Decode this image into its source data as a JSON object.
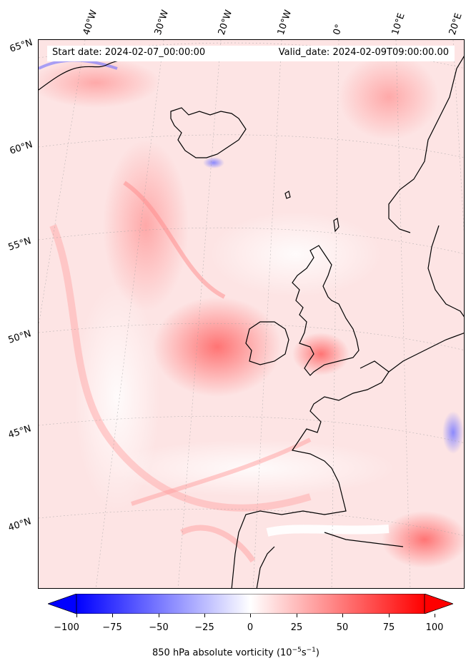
{
  "header": {
    "start_date": "Start date: 2024-02-07_00:00:00",
    "valid_date": "Valid_date: 2024-02-09T09:00:00.00"
  },
  "latitude_labels": [
    "65°N",
    "60°N",
    "55°N",
    "50°N",
    "45°N",
    "40°N"
  ],
  "longitude_labels": [
    "40°W",
    "30°W",
    "20°W",
    "10°W",
    "0°",
    "10°E",
    "20°E"
  ],
  "colorbar": {
    "ticks": [
      "−100",
      "−75",
      "−50",
      "−25",
      "0",
      "25",
      "50",
      "75",
      "100"
    ],
    "min": -100,
    "max": 100,
    "extend": "both",
    "colormap": "bwr",
    "title_prefix": "850 hPa absolute vorticity (10",
    "title_exp1": "−5",
    "title_mid": "s",
    "title_exp2": "−1",
    "title_suffix": ")"
  },
  "colors": {
    "negative": "#0000ff",
    "zero": "#ffffff",
    "positive": "#ff0000",
    "coastline": "#000000"
  }
}
